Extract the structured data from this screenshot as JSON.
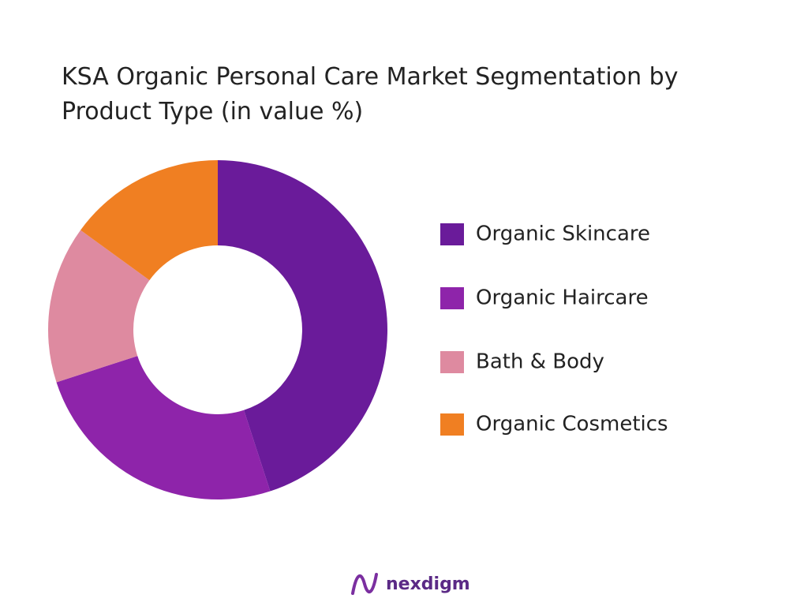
{
  "chart_data": {
    "type": "donut",
    "title": "KSA Organic Personal Care Market Segmentation by Product Type (in value %)",
    "categories": [
      "Organic Skincare",
      "Organic Haircare",
      "Bath & Body",
      "Organic Cosmetics"
    ],
    "series": [
      {
        "values": [
          45,
          25,
          15,
          15
        ],
        "colors": [
          "#6a1b9a",
          "#8e24aa",
          "#de8aa0",
          "#f07f22"
        ]
      }
    ]
  },
  "brand": "nexdigm"
}
